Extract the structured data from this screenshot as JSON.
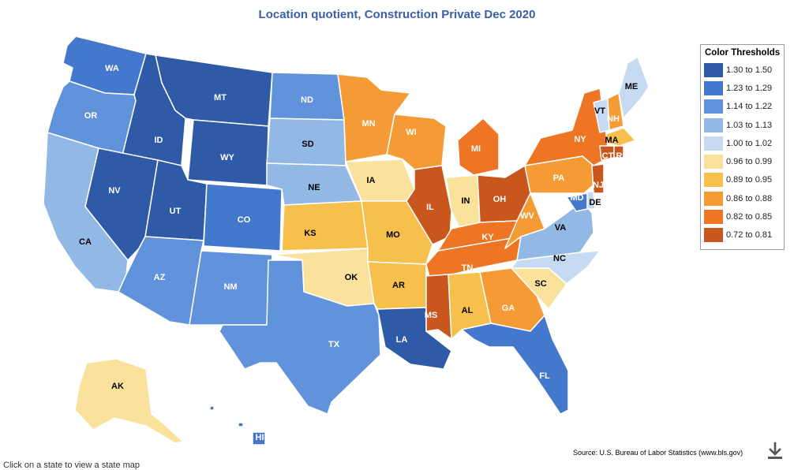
{
  "title": "Location quotient, Construction Private Dec 2020",
  "legend": {
    "title": "Color Thresholds",
    "items": [
      {
        "label": "1.30 to 1.50",
        "color": "#2f5aa8"
      },
      {
        "label": "1.23 to 1.29",
        "color": "#4478cc"
      },
      {
        "label": "1.14 to 1.22",
        "color": "#6193dc"
      },
      {
        "label": "1.03 to 1.13",
        "color": "#92b8e6"
      },
      {
        "label": "1.00 to 1.02",
        "color": "#c6daf2"
      },
      {
        "label": "0.96 to 0.99",
        "color": "#fbe29c"
      },
      {
        "label": "0.89 to 0.95",
        "color": "#f7c04d"
      },
      {
        "label": "0.86 to 0.88",
        "color": "#f59b35"
      },
      {
        "label": "0.82 to 0.85",
        "color": "#ee7524"
      },
      {
        "label": "0.72 to 0.81",
        "color": "#c9561c"
      }
    ]
  },
  "states": [
    {
      "abbr": "WA",
      "tier": 1,
      "label_color": "#ffffff"
    },
    {
      "abbr": "OR",
      "tier": 2,
      "label_color": "#ffffff"
    },
    {
      "abbr": "CA",
      "tier": 3,
      "label_color": "#000000"
    },
    {
      "abbr": "ID",
      "tier": 0,
      "label_color": "#ffffff"
    },
    {
      "abbr": "NV",
      "tier": 0,
      "label_color": "#ffffff"
    },
    {
      "abbr": "MT",
      "tier": 0,
      "label_color": "#ffffff"
    },
    {
      "abbr": "WY",
      "tier": 0,
      "label_color": "#ffffff"
    },
    {
      "abbr": "UT",
      "tier": 0,
      "label_color": "#ffffff"
    },
    {
      "abbr": "CO",
      "tier": 1,
      "label_color": "#ffffff"
    },
    {
      "abbr": "AZ",
      "tier": 2,
      "label_color": "#ffffff"
    },
    {
      "abbr": "NM",
      "tier": 2,
      "label_color": "#ffffff"
    },
    {
      "abbr": "ND",
      "tier": 2,
      "label_color": "#ffffff"
    },
    {
      "abbr": "SD",
      "tier": 3,
      "label_color": "#000000"
    },
    {
      "abbr": "NE",
      "tier": 3,
      "label_color": "#000000"
    },
    {
      "abbr": "KS",
      "tier": 6,
      "label_color": "#000000"
    },
    {
      "abbr": "OK",
      "tier": 5,
      "label_color": "#000000"
    },
    {
      "abbr": "TX",
      "tier": 2,
      "label_color": "#ffffff"
    },
    {
      "abbr": "MN",
      "tier": 7,
      "label_color": "#ffffff"
    },
    {
      "abbr": "IA",
      "tier": 5,
      "label_color": "#000000"
    },
    {
      "abbr": "MO",
      "tier": 6,
      "label_color": "#000000"
    },
    {
      "abbr": "AR",
      "tier": 6,
      "label_color": "#000000"
    },
    {
      "abbr": "LA",
      "tier": 0,
      "label_color": "#ffffff"
    },
    {
      "abbr": "WI",
      "tier": 7,
      "label_color": "#ffffff"
    },
    {
      "abbr": "IL",
      "tier": 9,
      "label_color": "#ffffff"
    },
    {
      "abbr": "MI",
      "tier": 8,
      "label_color": "#ffffff"
    },
    {
      "abbr": "IN",
      "tier": 5,
      "label_color": "#000000"
    },
    {
      "abbr": "OH",
      "tier": 9,
      "label_color": "#ffffff"
    },
    {
      "abbr": "KY",
      "tier": 8,
      "label_color": "#ffffff"
    },
    {
      "abbr": "TN",
      "tier": 8,
      "label_color": "#ffffff"
    },
    {
      "abbr": "MS",
      "tier": 9,
      "label_color": "#ffffff"
    },
    {
      "abbr": "AL",
      "tier": 6,
      "label_color": "#000000"
    },
    {
      "abbr": "GA",
      "tier": 7,
      "label_color": "#ffffff"
    },
    {
      "abbr": "FL",
      "tier": 1,
      "label_color": "#ffffff"
    },
    {
      "abbr": "SC",
      "tier": 5,
      "label_color": "#000000"
    },
    {
      "abbr": "NC",
      "tier": 4,
      "label_color": "#000000"
    },
    {
      "abbr": "VA",
      "tier": 3,
      "label_color": "#000000"
    },
    {
      "abbr": "WV",
      "tier": 7,
      "label_color": "#ffffff"
    },
    {
      "abbr": "PA",
      "tier": 7,
      "label_color": "#ffffff"
    },
    {
      "abbr": "NY",
      "tier": 8,
      "label_color": "#ffffff"
    },
    {
      "abbr": "VT",
      "tier": 4,
      "label_color": "#000000"
    },
    {
      "abbr": "NH",
      "tier": 7,
      "label_color": "#ffffff"
    },
    {
      "abbr": "ME",
      "tier": 4,
      "label_color": "#000000"
    },
    {
      "abbr": "MA",
      "tier": 6,
      "label_color": "#000000"
    },
    {
      "abbr": "CT",
      "tier": 9,
      "label_color": "#ffffff"
    },
    {
      "abbr": "RI",
      "tier": 9,
      "label_color": "#ffffff"
    },
    {
      "abbr": "NJ",
      "tier": 9,
      "label_color": "#ffffff"
    },
    {
      "abbr": "DE",
      "tier": 4,
      "label_color": "#000000"
    },
    {
      "abbr": "MD",
      "tier": 1,
      "label_color": "#ffffff"
    },
    {
      "abbr": "AK",
      "tier": 5,
      "label_color": "#000000"
    },
    {
      "abbr": "HI",
      "tier": 1,
      "label_color": "#ffffff"
    }
  ],
  "source": "Source: U.S. Bureau of Labor Statistics (www.bls.gov)",
  "instruction": "Click on a state to view a state map",
  "download_icon": "download-icon"
}
